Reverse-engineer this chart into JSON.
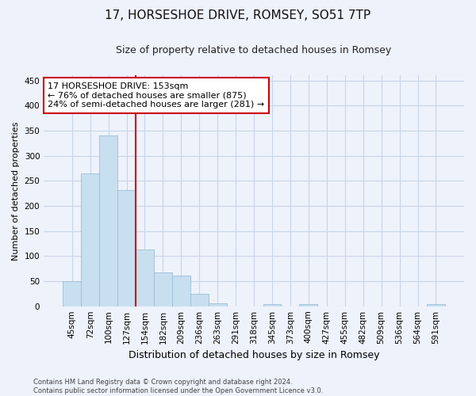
{
  "title": "17, HORSESHOE DRIVE, ROMSEY, SO51 7TP",
  "subtitle": "Size of property relative to detached houses in Romsey",
  "xlabel": "Distribution of detached houses by size in Romsey",
  "ylabel": "Number of detached properties",
  "bar_labels": [
    "45sqm",
    "72sqm",
    "100sqm",
    "127sqm",
    "154sqm",
    "182sqm",
    "209sqm",
    "236sqm",
    "263sqm",
    "291sqm",
    "318sqm",
    "345sqm",
    "373sqm",
    "400sqm",
    "427sqm",
    "455sqm",
    "482sqm",
    "509sqm",
    "536sqm",
    "564sqm",
    "591sqm"
  ],
  "bar_values": [
    50,
    265,
    340,
    232,
    113,
    67,
    61,
    25,
    6,
    0,
    0,
    5,
    0,
    4,
    0,
    0,
    0,
    0,
    0,
    0,
    4
  ],
  "bar_color": "#c8dff0",
  "bar_edge_color": "#9bbdd4",
  "grid_color": "#c8d4e8",
  "background_color": "#eef2fb",
  "annotation_text_line1": "17 HORSESHOE DRIVE: 153sqm",
  "annotation_text_line2": "← 76% of detached houses are smaller (875)",
  "annotation_text_line3": "24% of semi-detached houses are larger (281) →",
  "annotation_box_color": "#ffffff",
  "annotation_border_color": "#cc0000",
  "vline_color": "#cc0000",
  "footnote": "Contains HM Land Registry data © Crown copyright and database right 2024.\nContains public sector information licensed under the Open Government Licence v3.0.",
  "ylim": [
    0,
    460
  ],
  "vline_bin_index": 4,
  "title_fontsize": 11,
  "subtitle_fontsize": 9,
  "ylabel_fontsize": 8,
  "xlabel_fontsize": 9,
  "tick_fontsize": 7.5,
  "annotation_fontsize": 8,
  "footnote_fontsize": 6
}
